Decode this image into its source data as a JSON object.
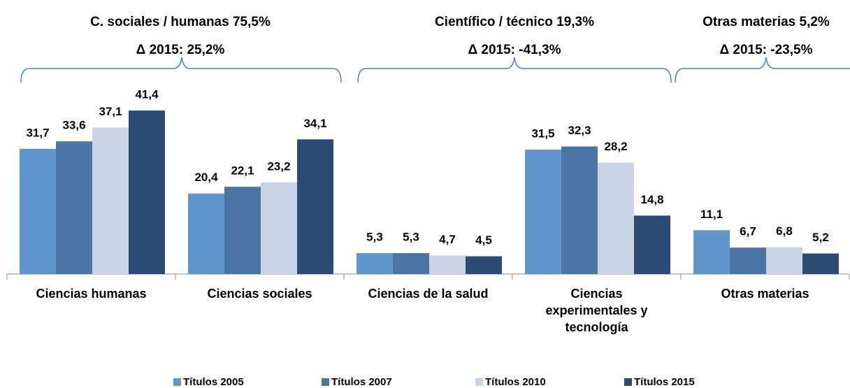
{
  "chart_data": {
    "type": "bar",
    "categories": [
      "Ciencias humanas",
      "Ciencias sociales",
      "Ciencias de la salud",
      "Ciencias experimentales y tecnología",
      "Otras materias"
    ],
    "series": [
      {
        "name": "Títulos 2005",
        "color": "#6096cb",
        "values": [
          31.7,
          20.4,
          5.3,
          31.5,
          11.1
        ],
        "value_labels": [
          "31,7",
          "20,4",
          "5,3",
          "31,5",
          "11,1"
        ]
      },
      {
        "name": "Títulos 2007",
        "color": "#4a75a5",
        "values": [
          33.6,
          22.1,
          5.3,
          32.3,
          6.7
        ],
        "value_labels": [
          "33,6",
          "22,1",
          "5,3",
          "32,3",
          "6,7"
        ]
      },
      {
        "name": "Títulos 2010",
        "color": "#c9d4e6",
        "values": [
          37.1,
          23.2,
          4.7,
          28.2,
          6.8
        ],
        "value_labels": [
          "37,1",
          "23,2",
          "4,7",
          "28,2",
          "6,8"
        ]
      },
      {
        "name": "Títulos 2015",
        "color": "#2c4a76",
        "values": [
          41.4,
          34.1,
          4.5,
          14.8,
          5.2
        ],
        "value_labels": [
          "41,4",
          "34,1",
          "4,5",
          "14,8",
          "5,2"
        ]
      }
    ],
    "annotations": [
      {
        "title": "C. sociales / humanas 75,5%",
        "delta": "Δ 2015: 25,2%"
      },
      {
        "title": "Científico / técnico 19,3%",
        "delta": "Δ 2015: -41,3%"
      },
      {
        "title": "Otras materias 5,2%",
        "delta": "Δ 2015: -23,5%"
      }
    ],
    "legend": "bottom"
  }
}
